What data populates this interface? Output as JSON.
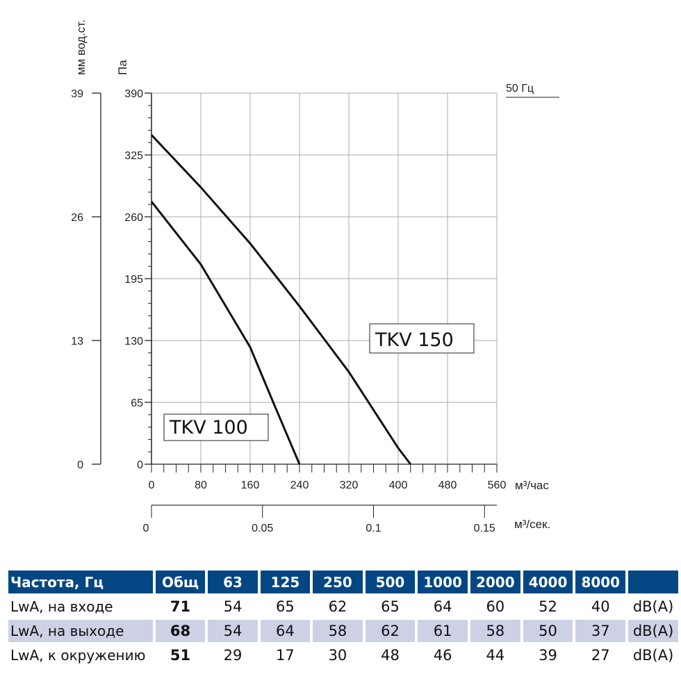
{
  "chart_data": {
    "type": "line",
    "xlabel": "м³/час",
    "ylabel": "Па",
    "ylabel2": "мм вод.ст.",
    "xlabel2": "м³/сек.",
    "legend_note": "50 Гц",
    "xlim": [
      0,
      560
    ],
    "ylim": [
      0,
      390
    ],
    "x_ticks": [
      "0",
      "80",
      "160",
      "240",
      "320",
      "400",
      "480",
      "560"
    ],
    "y_ticks": [
      "0",
      "65",
      "130",
      "195",
      "260",
      "325",
      "390"
    ],
    "y2_ticks": [
      "0",
      "13",
      "26",
      "39"
    ],
    "x2_ticks": [
      "0",
      "0.05",
      "0.1",
      "0.15"
    ],
    "grid": true,
    "series": [
      {
        "name": "TKV 150",
        "x": [
          0,
          80,
          160,
          240,
          320,
          400,
          420
        ],
        "y": [
          346,
          291,
          232,
          166,
          97,
          17,
          0
        ]
      },
      {
        "name": "TKV 100",
        "x": [
          0,
          80,
          160,
          200,
          240
        ],
        "y": [
          276,
          210,
          123,
          61,
          0
        ]
      }
    ]
  },
  "table": {
    "header": [
      "Частота, Гц",
      "Общ",
      "63",
      "125",
      "250",
      "500",
      "1000",
      "2000",
      "4000",
      "8000",
      ""
    ],
    "rows": [
      [
        "LwA, на входе",
        "71",
        "54",
        "65",
        "62",
        "65",
        "64",
        "60",
        "52",
        "40",
        "dB(A)"
      ],
      [
        "LwA, на выходе",
        "68",
        "54",
        "64",
        "58",
        "62",
        "61",
        "58",
        "50",
        "37",
        "dB(A)"
      ],
      [
        "LwA, к окружению",
        "51",
        "29",
        "17",
        "30",
        "48",
        "46",
        "44",
        "39",
        "27",
        "dB(A)"
      ]
    ]
  }
}
